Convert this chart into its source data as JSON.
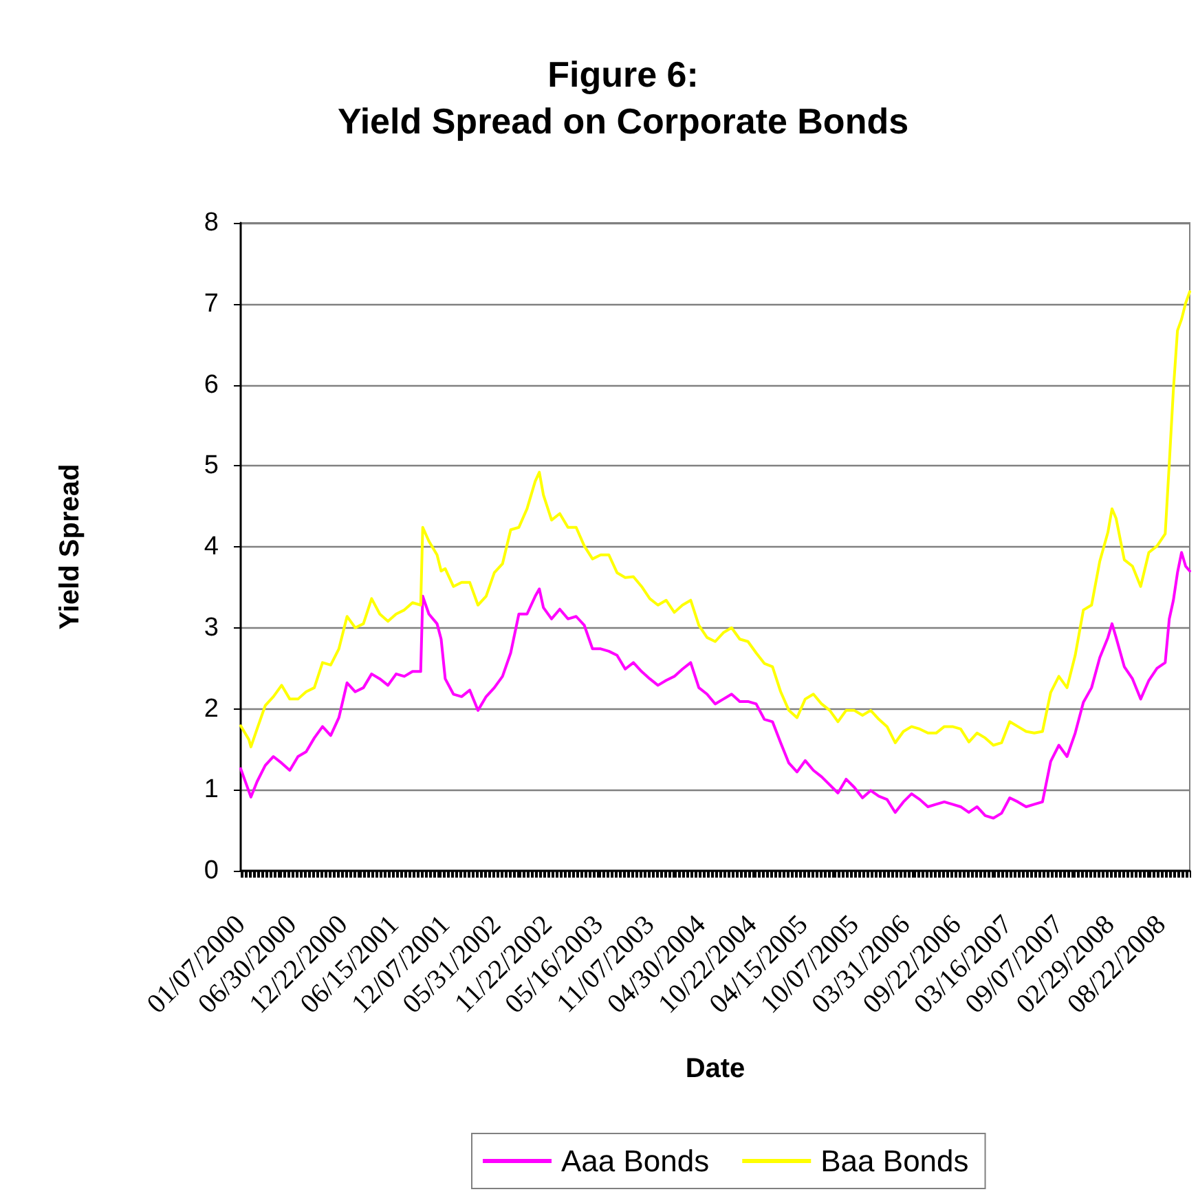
{
  "chart_data": {
    "type": "line",
    "title": "Figure 6:\nYield Spread on Corporate Bonds",
    "xlabel": "Date",
    "ylabel": "Yield Spread",
    "x": [
      "2000-01-07",
      "2000-02-04",
      "2000-02-11",
      "2000-03-03",
      "2000-03-31",
      "2000-04-28",
      "2000-05-26",
      "2000-06-23",
      "2000-07-21",
      "2000-08-18",
      "2000-09-15",
      "2000-10-13",
      "2000-11-10",
      "2000-12-08",
      "2001-01-05",
      "2001-02-02",
      "2001-03-02",
      "2001-03-30",
      "2001-04-27",
      "2001-05-25",
      "2001-06-22",
      "2001-07-20",
      "2001-08-17",
      "2001-09-14",
      "2001-09-21",
      "2001-10-12",
      "2001-11-09",
      "2001-11-23",
      "2001-12-07",
      "2002-01-04",
      "2002-02-01",
      "2002-03-01",
      "2002-03-29",
      "2002-04-26",
      "2002-05-24",
      "2002-06-21",
      "2002-07-19",
      "2002-08-16",
      "2002-09-13",
      "2002-10-11",
      "2002-10-25",
      "2002-11-08",
      "2002-12-06",
      "2003-01-03",
      "2003-01-31",
      "2003-02-28",
      "2003-03-28",
      "2003-04-25",
      "2003-05-23",
      "2003-06-20",
      "2003-07-18",
      "2003-08-15",
      "2003-09-12",
      "2003-10-10",
      "2003-11-07",
      "2003-12-05",
      "2004-01-02",
      "2004-01-30",
      "2004-02-27",
      "2004-03-26",
      "2004-04-23",
      "2004-05-21",
      "2004-06-18",
      "2004-07-16",
      "2004-08-13",
      "2004-09-10",
      "2004-10-08",
      "2004-11-05",
      "2004-12-03",
      "2004-12-31",
      "2005-01-28",
      "2005-02-25",
      "2005-03-25",
      "2005-04-22",
      "2005-05-20",
      "2005-06-17",
      "2005-07-15",
      "2005-08-12",
      "2005-09-09",
      "2005-10-07",
      "2005-11-04",
      "2005-12-02",
      "2005-12-30",
      "2006-01-27",
      "2006-02-24",
      "2006-03-24",
      "2006-04-21",
      "2006-05-19",
      "2006-06-16",
      "2006-07-14",
      "2006-08-11",
      "2006-09-08",
      "2006-10-06",
      "2006-11-03",
      "2006-12-01",
      "2006-12-29",
      "2007-01-26",
      "2007-02-23",
      "2007-03-23",
      "2007-04-20",
      "2007-05-18",
      "2007-06-15",
      "2007-07-13",
      "2007-08-10",
      "2007-09-07",
      "2007-10-05",
      "2007-11-02",
      "2007-11-30",
      "2007-12-28",
      "2008-01-25",
      "2008-02-22",
      "2008-03-07",
      "2008-03-21",
      "2008-04-18",
      "2008-05-16",
      "2008-06-13",
      "2008-07-11",
      "2008-08-08",
      "2008-09-05",
      "2008-09-19",
      "2008-10-03",
      "2008-10-17",
      "2008-10-31",
      "2008-11-14",
      "2008-11-28"
    ],
    "series": [
      {
        "name": "Aaa Bonds",
        "color": "#ff00ff",
        "values": [
          1.26,
          0.98,
          0.91,
          1.1,
          1.3,
          1.41,
          1.33,
          1.24,
          1.41,
          1.47,
          1.64,
          1.78,
          1.67,
          1.89,
          2.32,
          2.21,
          2.26,
          2.43,
          2.37,
          2.29,
          2.43,
          2.4,
          2.46,
          2.46,
          3.39,
          3.17,
          3.05,
          2.86,
          2.37,
          2.18,
          2.15,
          2.23,
          1.98,
          2.15,
          2.26,
          2.4,
          2.69,
          3.17,
          3.17,
          3.39,
          3.48,
          3.25,
          3.11,
          3.23,
          3.11,
          3.14,
          3.03,
          2.74,
          2.74,
          2.71,
          2.66,
          2.49,
          2.57,
          2.46,
          2.37,
          2.29,
          2.35,
          2.4,
          2.49,
          2.57,
          2.26,
          2.18,
          2.06,
          2.12,
          2.18,
          2.09,
          2.09,
          2.06,
          1.87,
          1.84,
          1.58,
          1.33,
          1.22,
          1.36,
          1.24,
          1.16,
          1.06,
          0.96,
          1.13,
          1.03,
          0.9,
          0.99,
          0.92,
          0.88,
          0.72,
          0.85,
          0.95,
          0.88,
          0.79,
          0.82,
          0.85,
          0.82,
          0.79,
          0.72,
          0.79,
          0.68,
          0.65,
          0.71,
          0.9,
          0.85,
          0.79,
          0.82,
          0.85,
          1.35,
          1.55,
          1.41,
          1.7,
          2.08,
          2.26,
          2.63,
          2.88,
          3.05,
          2.88,
          2.52,
          2.37,
          2.12,
          2.35,
          2.5,
          2.57,
          3.11,
          3.34,
          3.68,
          3.93,
          3.76,
          3.7
        ]
      },
      {
        "name": "Baa Bonds",
        "color": "#ffff00",
        "values": [
          1.79,
          1.62,
          1.53,
          1.75,
          2.04,
          2.15,
          2.29,
          2.12,
          2.12,
          2.21,
          2.26,
          2.57,
          2.54,
          2.74,
          3.14,
          3.0,
          3.05,
          3.36,
          3.17,
          3.08,
          3.17,
          3.22,
          3.31,
          3.28,
          4.24,
          4.07,
          3.9,
          3.7,
          3.73,
          3.51,
          3.56,
          3.56,
          3.28,
          3.39,
          3.68,
          3.79,
          4.21,
          4.24,
          4.47,
          4.81,
          4.92,
          4.64,
          4.33,
          4.41,
          4.24,
          4.24,
          4.01,
          3.85,
          3.9,
          3.9,
          3.68,
          3.62,
          3.63,
          3.51,
          3.36,
          3.28,
          3.34,
          3.19,
          3.28,
          3.34,
          3.03,
          2.88,
          2.83,
          2.94,
          3.0,
          2.86,
          2.83,
          2.69,
          2.56,
          2.52,
          2.21,
          1.98,
          1.89,
          2.12,
          2.18,
          2.06,
          1.98,
          1.84,
          1.98,
          1.98,
          1.92,
          1.98,
          1.87,
          1.78,
          1.58,
          1.72,
          1.78,
          1.75,
          1.7,
          1.7,
          1.78,
          1.78,
          1.75,
          1.59,
          1.7,
          1.64,
          1.55,
          1.58,
          1.84,
          1.78,
          1.72,
          1.7,
          1.72,
          2.2,
          2.4,
          2.26,
          2.66,
          3.22,
          3.28,
          3.82,
          4.18,
          4.47,
          4.35,
          3.84,
          3.76,
          3.51,
          3.93,
          4.01,
          4.16,
          5.03,
          5.94,
          6.67,
          6.81,
          7.01,
          7.15
        ]
      }
    ],
    "xlim": [
      "2000-01-07",
      "2008-11-28"
    ],
    "xticks": [
      {
        "value": "2000-01-07",
        "label": "01/07/2000"
      },
      {
        "value": "2000-06-30",
        "label": "06/30/2000"
      },
      {
        "value": "2000-12-22",
        "label": "12/22/2000"
      },
      {
        "value": "2001-06-15",
        "label": "06/15/2001"
      },
      {
        "value": "2001-12-07",
        "label": "12/07/2001"
      },
      {
        "value": "2002-05-31",
        "label": "05/31/2002"
      },
      {
        "value": "2002-11-22",
        "label": "11/22/2002"
      },
      {
        "value": "2003-05-16",
        "label": "05/16/2003"
      },
      {
        "value": "2003-11-07",
        "label": "11/07/2003"
      },
      {
        "value": "2004-04-30",
        "label": "04/30/2004"
      },
      {
        "value": "2004-10-22",
        "label": "10/22/2004"
      },
      {
        "value": "2005-04-15",
        "label": "04/15/2005"
      },
      {
        "value": "2005-10-07",
        "label": "10/07/2005"
      },
      {
        "value": "2006-03-31",
        "label": "03/31/2006"
      },
      {
        "value": "2006-09-22",
        "label": "09/22/2006"
      },
      {
        "value": "2007-03-16",
        "label": "03/16/2007"
      },
      {
        "value": "2007-09-07",
        "label": "09/07/2007"
      },
      {
        "value": "2008-02-29",
        "label": "02/29/2008"
      },
      {
        "value": "2008-08-22",
        "label": "08/22/2008"
      }
    ],
    "ylim": [
      0,
      8
    ],
    "yticks": [
      0,
      1,
      2,
      3,
      4,
      5,
      6,
      7,
      8
    ],
    "grid": "y",
    "legend": "bottom",
    "marker": "none",
    "line_style": "solid"
  }
}
